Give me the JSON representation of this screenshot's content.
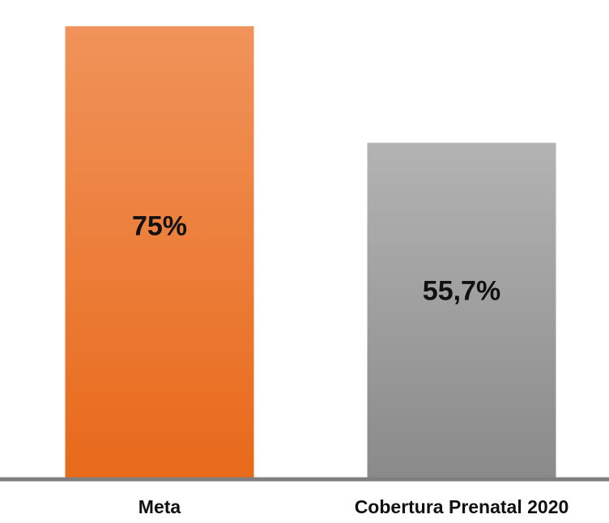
{
  "chart_data": {
    "type": "bar",
    "title": "",
    "xlabel": "",
    "ylabel": "",
    "categories": [
      "Meta",
      "Cobertura Prenatal 2020"
    ],
    "values": [
      75,
      55.7
    ],
    "data_labels": [
      "75%",
      "55,7%"
    ],
    "ylim": [
      0,
      78
    ],
    "grid": false,
    "legend": "none",
    "bar_colors": [
      {
        "top": "#F0935A",
        "bottom": "#E8691A"
      },
      {
        "top": "#B3B3B3",
        "bottom": "#8A8A8A"
      }
    ],
    "axis_color": "#7F7F7F"
  }
}
